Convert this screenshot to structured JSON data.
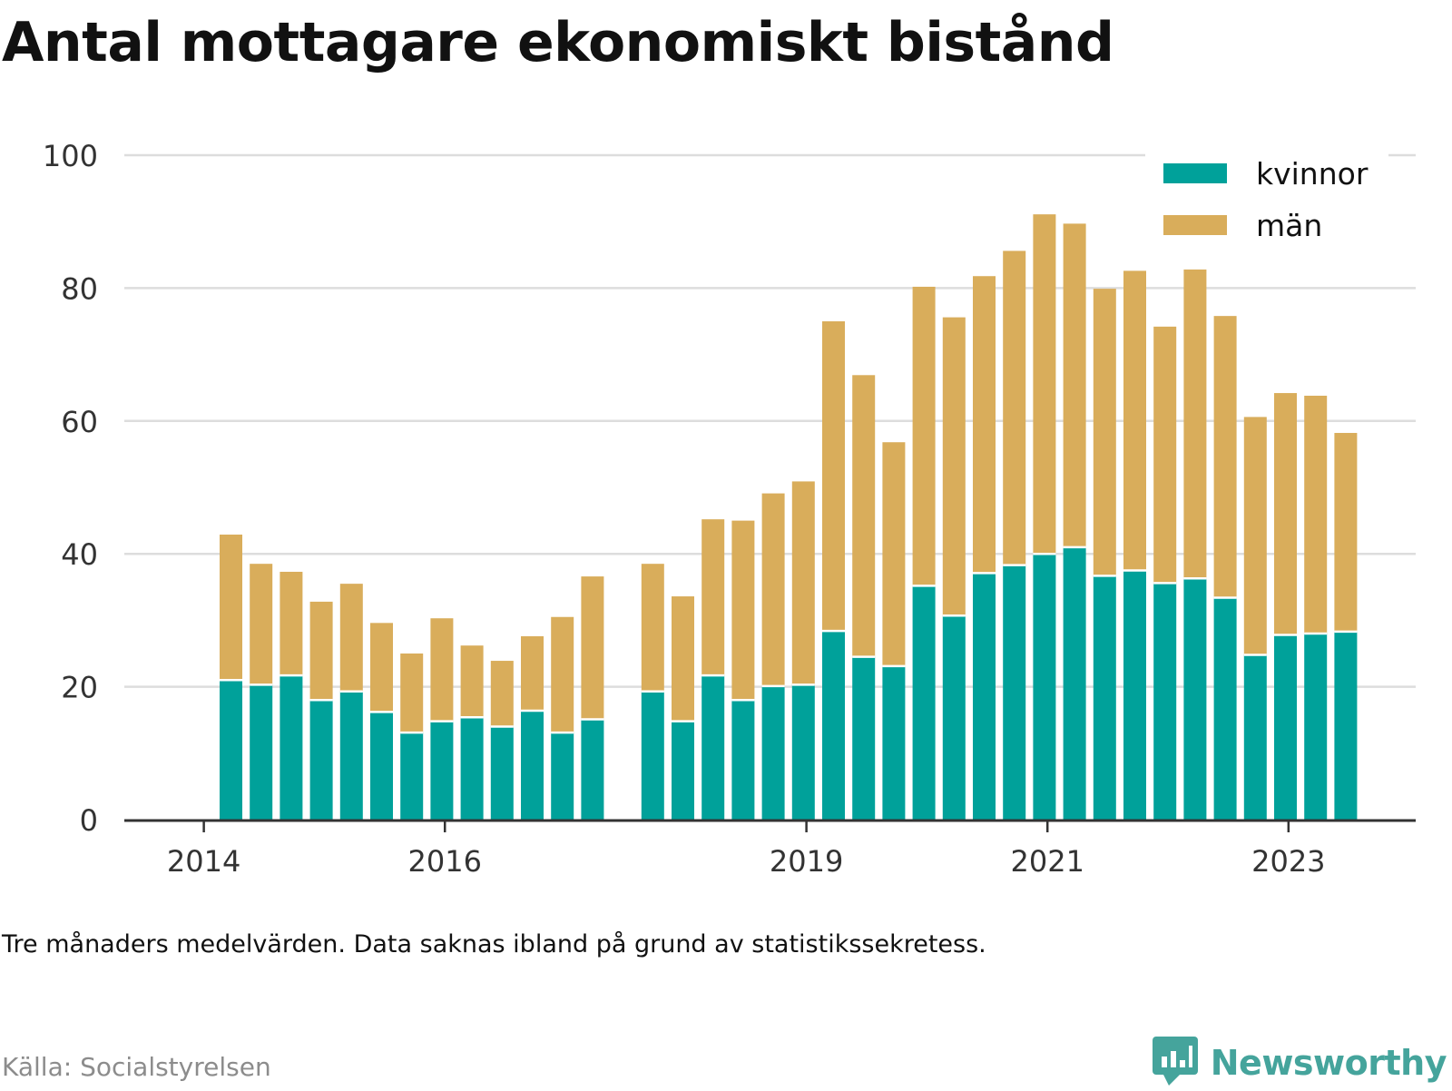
{
  "title": "Antal mottagare ekonomiskt bistånd",
  "note": "Tre månaders medelvärden. Data saknas ibland på grund av statistikssekretess.",
  "source": "Källa: Socialstyrelsen",
  "brand": "Newsworthy",
  "colors": {
    "kvinnor": "#00a19a",
    "man": "#d9ad5b",
    "grid": "#dddddd",
    "axis": "#333333",
    "brand": "#45a49c"
  },
  "chart_data": {
    "type": "bar",
    "stacked": true,
    "x_ticks": [
      {
        "label": "2014",
        "pos": -0.9
      },
      {
        "label": "2016",
        "pos": 7.1
      },
      {
        "label": "2019",
        "pos": 19.1
      },
      {
        "label": "2021",
        "pos": 27.1
      },
      {
        "label": "2023",
        "pos": 35.1
      }
    ],
    "y_ticks": [
      0,
      20,
      40,
      60,
      80,
      100
    ],
    "ylim": [
      0,
      100
    ],
    "grid": true,
    "legend_position": "top-right",
    "bar_slots": 38,
    "series": [
      {
        "name": "kvinnor",
        "values": [
          21,
          20.3,
          21.7,
          18,
          19.3,
          16.2,
          13.1,
          14.8,
          15.4,
          14,
          16.4,
          13.1,
          15.1,
          null,
          19.3,
          14.8,
          21.7,
          18,
          20.1,
          20.3,
          28.4,
          24.5,
          23.1,
          35.2,
          30.7,
          37.1,
          38.3,
          40,
          41,
          36.7,
          37.5,
          35.6,
          36.3,
          33.4,
          24.8,
          27.8,
          28,
          28.3
        ]
      },
      {
        "name": "män",
        "values": [
          21.9,
          18.2,
          15.6,
          14.8,
          16.2,
          13.4,
          11.9,
          15.5,
          10.8,
          9.9,
          11.2,
          17.4,
          21.5,
          null,
          19.2,
          18.8,
          23.5,
          27,
          29,
          30.6,
          46.6,
          42.4,
          33.7,
          45,
          44.9,
          44.7,
          47.3,
          51.1,
          48.7,
          43.2,
          45.1,
          38.6,
          46.5,
          42.4,
          35.8,
          36.4,
          35.8,
          29.9
        ]
      }
    ]
  }
}
